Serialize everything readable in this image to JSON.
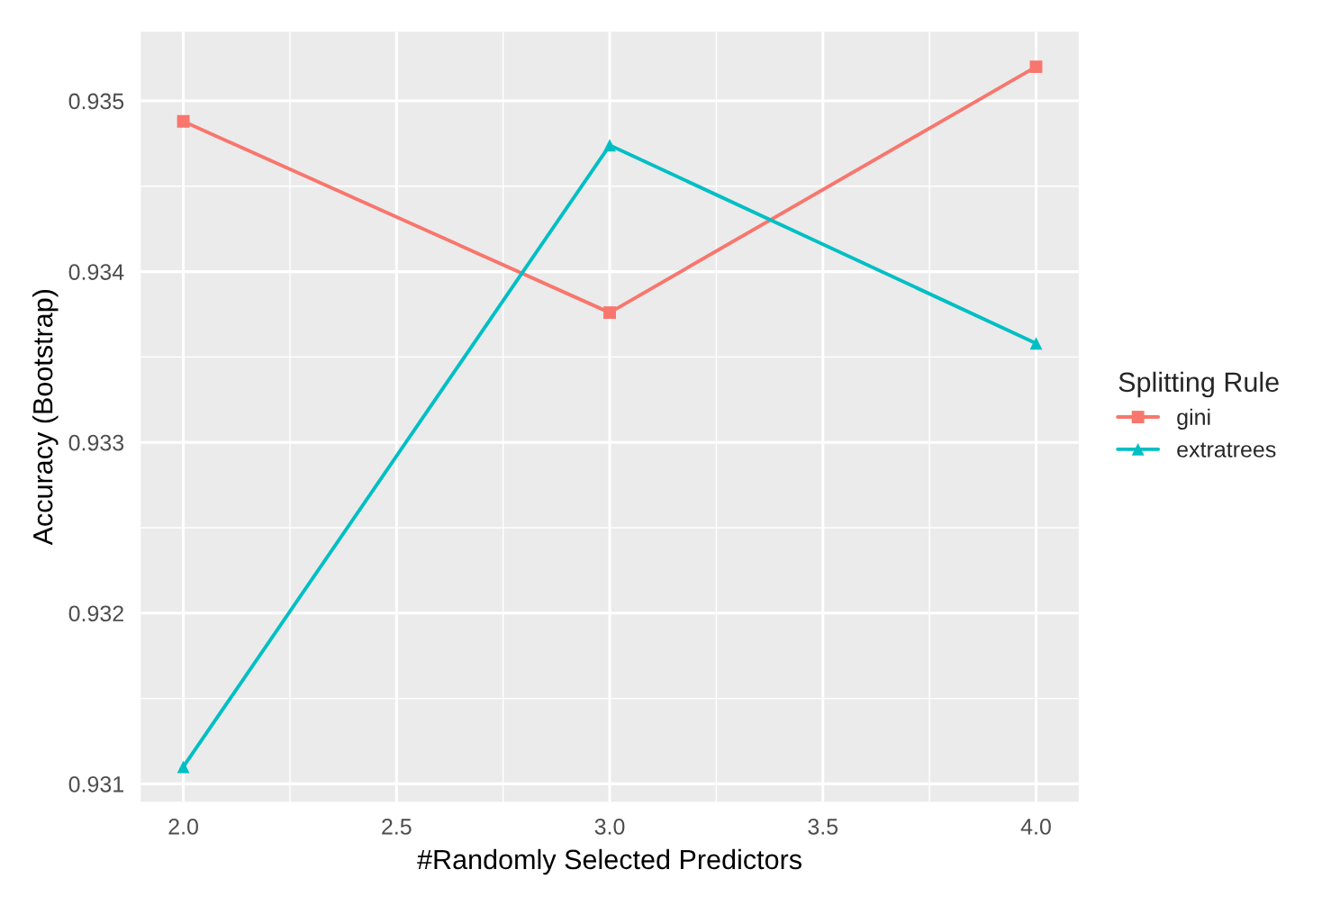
{
  "chart_data": {
    "type": "line",
    "xlabel": "#Randomly Selected Predictors",
    "ylabel": "Accuracy (Bootstrap)",
    "legend_title": "Splitting Rule",
    "x": [
      2,
      3,
      4
    ],
    "series": [
      {
        "name": "gini",
        "color": "#f8766d",
        "marker": "square",
        "values": [
          0.93488,
          0.93376,
          0.9352
        ]
      },
      {
        "name": "extratrees",
        "color": "#00bfc4",
        "marker": "triangle",
        "values": [
          0.9311,
          0.93474,
          0.93358
        ]
      }
    ],
    "xlim": [
      1.9,
      4.1
    ],
    "xticks": [
      {
        "value": 2,
        "label": "2.0"
      },
      2.5,
      {
        "value": 3,
        "label": "3.0"
      },
      3.5,
      {
        "value": 4,
        "label": "4.0"
      }
    ],
    "ylim": [
      0.930895,
      0.935405
    ],
    "yticks": [
      0.931,
      0.932,
      0.933,
      0.934,
      0.935
    ],
    "grid": true,
    "legend": "right",
    "line_style": "solid"
  }
}
